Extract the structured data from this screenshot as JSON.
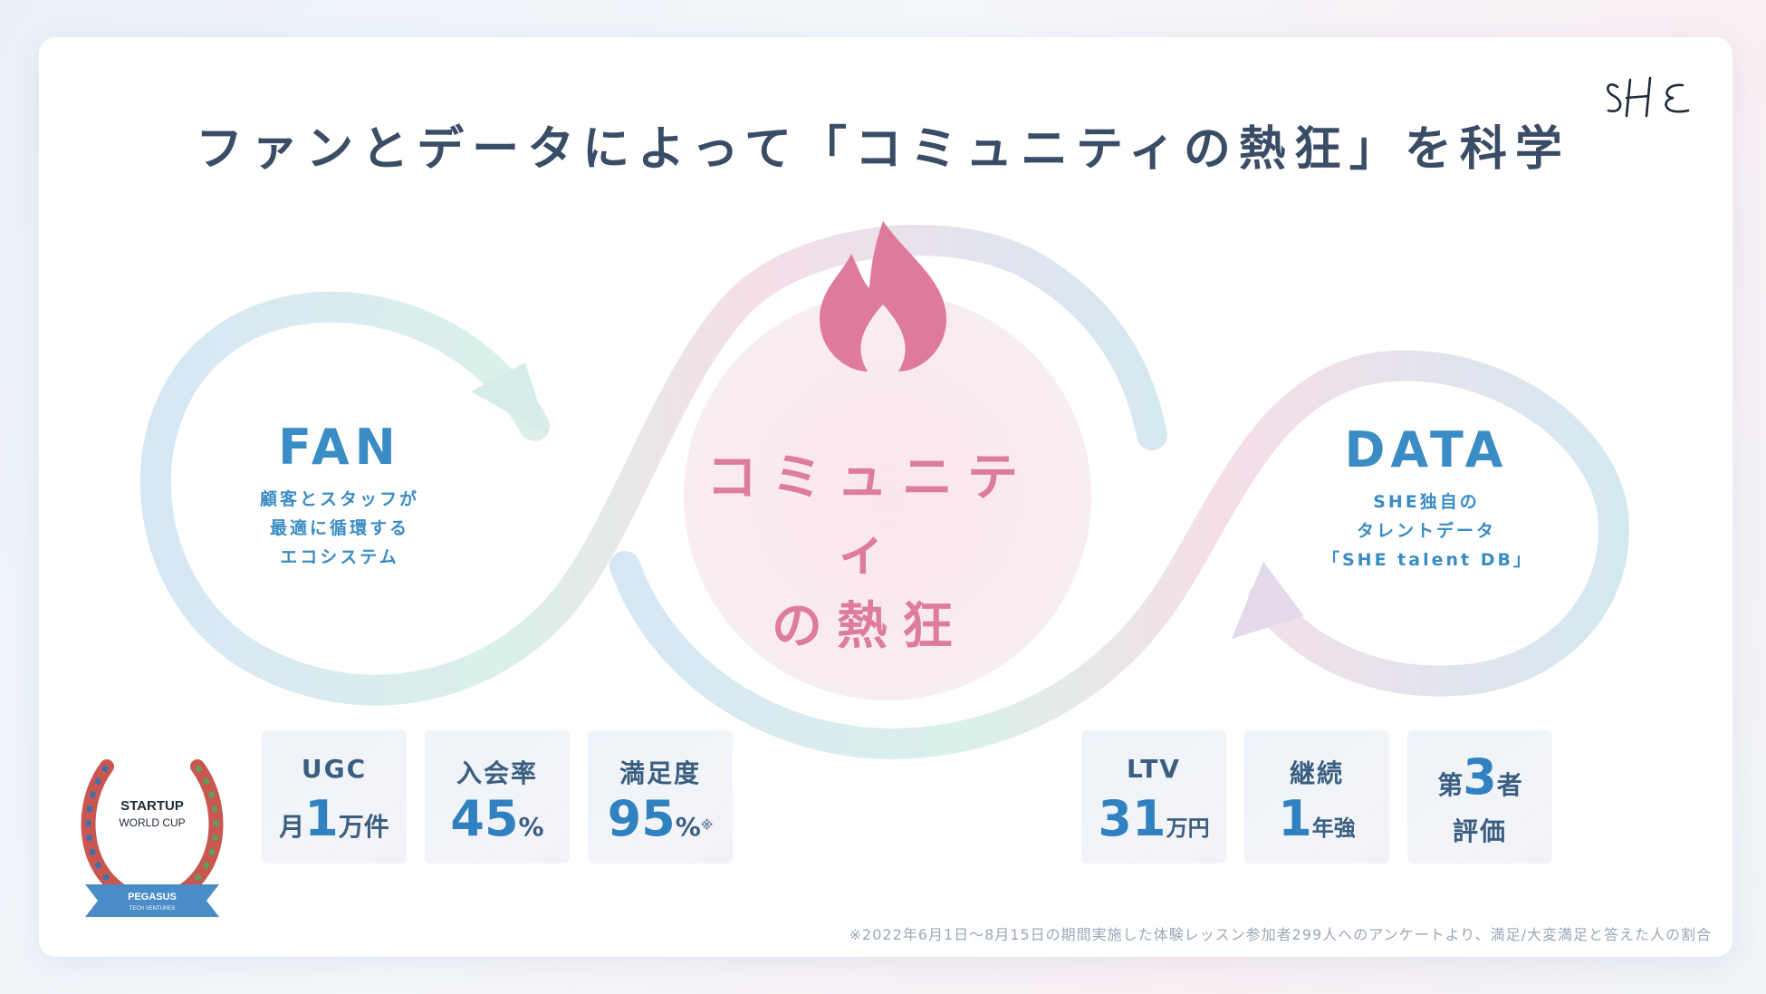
{
  "title": "ファンとデータによって「コミュニティの熱狂」を科学",
  "logo_text": "SHE",
  "colors": {
    "title": "#3a4d66",
    "accent_blue": "#2f82bf",
    "accent_pink": "#de7c9c",
    "flame": "#e07a9c"
  },
  "center": {
    "line1": "コミュニティ",
    "line2": "の熱狂",
    "icon": "flame-icon"
  },
  "fan": {
    "title": "FAN",
    "lines": [
      "顧客とスタッフが",
      "最適に循環する",
      "エコシステム"
    ]
  },
  "data": {
    "title": "DATA",
    "lines": [
      "SHE独自の",
      "タレントデータ",
      "「SHE talent DB」"
    ]
  },
  "fan_stats": [
    {
      "label": "UGC",
      "prefix": "月",
      "number": "1",
      "unit": "万件"
    },
    {
      "label": "入会率",
      "number": "45",
      "unit": "%"
    },
    {
      "label": "満足度",
      "number": "95",
      "unit": "%",
      "mark": "※"
    }
  ],
  "data_stats": [
    {
      "label": "LTV",
      "number": "31",
      "unit": "万円"
    },
    {
      "label": "継続",
      "number": "1",
      "unit": "年強"
    },
    {
      "prefix": "第",
      "number": "3",
      "unit": "者",
      "line2": "評価"
    }
  ],
  "award": {
    "line1": "STARTUP",
    "line2": "WORLD CUP",
    "ribbon": "PEGASUS",
    "ribbon_sub": "TECH VENTURES"
  },
  "footnote": "※2022年6月1日〜8月15日の期間実施した体験レッスン参加者299人へのアンケートより、満足/大変満足と答えた人の割合"
}
